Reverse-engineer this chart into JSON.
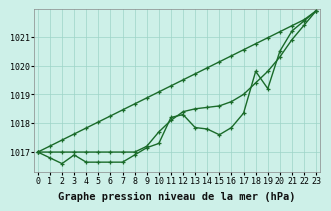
{
  "xlabel": "Graphe pression niveau de la mer (hPa)",
  "background_color": "#cdf0e8",
  "grid_color": "#9dd4c8",
  "line_color": "#1a6b2a",
  "hours": [
    0,
    1,
    2,
    3,
    4,
    5,
    6,
    7,
    8,
    9,
    10,
    11,
    12,
    13,
    14,
    15,
    16,
    17,
    18,
    19,
    20,
    21,
    22,
    23
  ],
  "series1": [
    1017.0,
    1016.8,
    1016.6,
    1016.9,
    1016.65,
    1016.65,
    1016.65,
    1016.65,
    1016.9,
    1017.15,
    1017.3,
    1018.2,
    1018.3,
    1017.85,
    1017.8,
    1017.6,
    1017.85,
    1018.35,
    1019.8,
    1019.2,
    1020.5,
    1021.2,
    1021.55,
    1021.9
  ],
  "series2": [
    1017.0,
    1017.0,
    1017.0,
    1017.0,
    1017.0,
    1017.0,
    1017.0,
    1017.0,
    1017.0,
    1017.2,
    1017.7,
    1018.1,
    1018.4,
    1018.5,
    1018.55,
    1018.6,
    1018.75,
    1019.0,
    1019.4,
    1019.8,
    1020.3,
    1020.9,
    1021.4,
    1021.9
  ],
  "series3": [
    1017.0,
    1017.208,
    1017.417,
    1017.626,
    1017.835,
    1018.043,
    1018.252,
    1018.461,
    1018.67,
    1018.878,
    1019.087,
    1019.296,
    1019.504,
    1019.713,
    1019.922,
    1020.13,
    1020.339,
    1020.548,
    1020.757,
    1020.965,
    1021.174,
    1021.383,
    1021.591,
    1021.9
  ],
  "ylim": [
    1016.3,
    1021.95
  ],
  "yticks": [
    1017,
    1018,
    1019,
    1020,
    1021
  ],
  "xticks": [
    0,
    1,
    2,
    3,
    4,
    5,
    6,
    7,
    8,
    9,
    10,
    11,
    12,
    13,
    14,
    15,
    16,
    17,
    18,
    19,
    20,
    21,
    22,
    23
  ],
  "xlabel_fontsize": 7.5,
  "tick_fontsize": 6,
  "marker": "+",
  "markersize": 3.5,
  "linewidth": 1.0
}
